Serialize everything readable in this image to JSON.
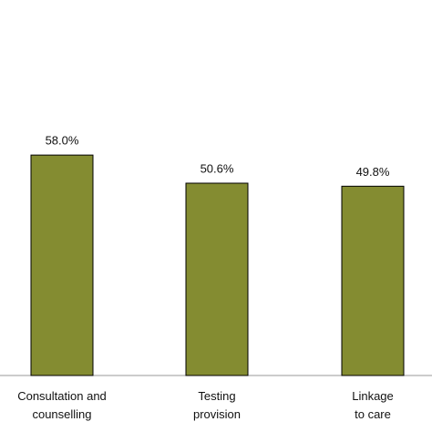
{
  "chart_data": {
    "type": "bar",
    "categories": [
      "Consultation and\ncounselling",
      "Testing\nprovision",
      "Linkage\nto care"
    ],
    "values": [
      58.0,
      50.6,
      49.8
    ],
    "value_labels": [
      "58.0%",
      "50.6%",
      "49.8%"
    ],
    "color": "#848c31",
    "ylim": [
      0,
      100
    ]
  }
}
